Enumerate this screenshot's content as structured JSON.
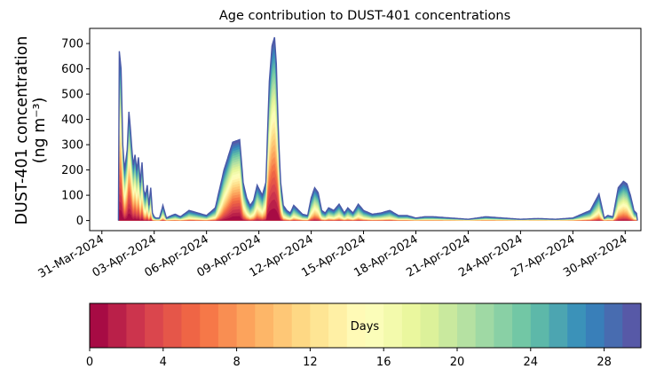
{
  "chart_data": {
    "type": "area",
    "title": "Age contribution to DUST-401 concentrations",
    "ylabel_line1": "DUST-401 concentration",
    "ylabel_line2": "(ng m⁻³)",
    "xlabel": "",
    "x_range_days": [
      -0.7,
      30.9
    ],
    "ylim": [
      -40,
      760
    ],
    "yticks": [
      0,
      100,
      200,
      300,
      400,
      500,
      600,
      700
    ],
    "xticks": [
      {
        "day": 0,
        "label": "31-Mar-2024"
      },
      {
        "day": 3,
        "label": "03-Apr-2024"
      },
      {
        "day": 6,
        "label": "06-Apr-2024"
      },
      {
        "day": 9,
        "label": "09-Apr-2024"
      },
      {
        "day": 12,
        "label": "12-Apr-2024"
      },
      {
        "day": 15,
        "label": "15-Apr-2024"
      },
      {
        "day": 18,
        "label": "18-Apr-2024"
      },
      {
        "day": 21,
        "label": "21-Apr-2024"
      },
      {
        "day": 24,
        "label": "24-Apr-2024"
      },
      {
        "day": 27,
        "label": "27-Apr-2024"
      },
      {
        "day": 30,
        "label": "30-Apr-2024"
      }
    ],
    "series_note": "stacked age-class contributions (0-30 days), outer envelope = total concentration",
    "total_envelope": {
      "day": [
        0.95,
        1.0,
        1.1,
        1.2,
        1.3,
        1.45,
        1.55,
        1.62,
        1.7,
        1.8,
        1.9,
        2.0,
        2.1,
        2.2,
        2.3,
        2.4,
        2.5,
        2.6,
        2.7,
        2.8,
        2.9,
        3.0,
        3.1,
        3.3,
        3.5,
        3.7,
        4.0,
        4.2,
        4.5,
        5.0,
        5.5,
        6.0,
        6.5,
        7.0,
        7.5,
        7.9,
        8.1,
        8.3,
        8.5,
        8.7,
        8.9,
        9.2,
        9.4,
        9.6,
        9.75,
        9.9,
        10.0,
        10.05,
        10.15,
        10.25,
        10.4,
        10.6,
        10.8,
        11.0,
        11.5,
        11.8,
        12.0,
        12.2,
        12.4,
        12.6,
        12.8,
        13.0,
        13.3,
        13.6,
        13.9,
        14.1,
        14.4,
        14.7,
        15.0,
        15.5,
        16.0,
        16.5,
        17.0,
        17.5,
        18.0,
        18.5,
        19.0,
        20.0,
        21.0,
        22.0,
        23.0,
        24.0,
        25.0,
        26.0,
        27.0,
        28.0,
        28.5,
        28.8,
        29.0,
        29.3,
        29.6,
        29.9,
        30.1,
        30.3,
        30.5,
        30.7
      ],
      "value": [
        680,
        670,
        600,
        300,
        200,
        280,
        430,
        380,
        300,
        220,
        260,
        200,
        250,
        150,
        230,
        120,
        100,
        140,
        60,
        130,
        30,
        15,
        10,
        10,
        60,
        10,
        20,
        25,
        15,
        40,
        30,
        20,
        50,
        200,
        310,
        320,
        150,
        90,
        60,
        80,
        140,
        100,
        150,
        550,
        690,
        725,
        620,
        500,
        300,
        150,
        60,
        40,
        30,
        60,
        25,
        20,
        90,
        130,
        110,
        40,
        30,
        50,
        40,
        65,
        30,
        50,
        30,
        65,
        40,
        25,
        30,
        40,
        20,
        20,
        10,
        15,
        15,
        10,
        5,
        15,
        10,
        5,
        8,
        5,
        10,
        40,
        105,
        10,
        20,
        15,
        130,
        155,
        145,
        100,
        40,
        25
      ]
    },
    "colorbar": {
      "label": "Days",
      "ticks": [
        0,
        4,
        8,
        12,
        16,
        20,
        24,
        28
      ],
      "range": [
        0,
        30
      ],
      "bands": 30,
      "palette": [
        "#9e0142",
        "#d53e4f",
        "#f46d43",
        "#fdae61",
        "#fee08b",
        "#ffffbf",
        "#e6f598",
        "#abdda4",
        "#66c2a5",
        "#3288bd",
        "#5e4fa2"
      ]
    }
  }
}
